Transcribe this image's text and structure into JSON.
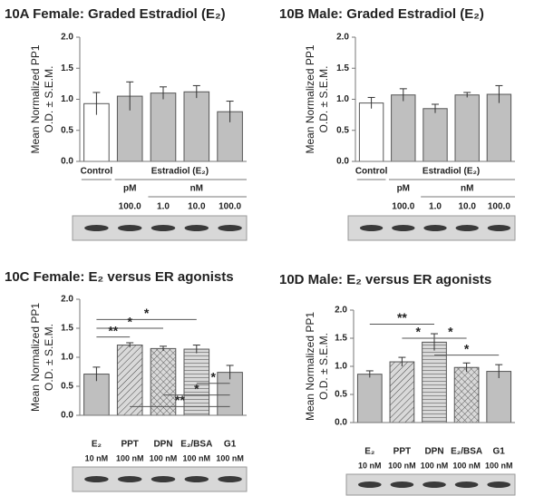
{
  "chart_data": [
    {
      "type": "bar",
      "title": "10A  Female:  Graded Estradiol (E₂)",
      "y_label": [
        "Mean Normalized PP1",
        "O.D. ± S.E.M."
      ],
      "categories": [
        "Control",
        "100.0",
        "1.0",
        "10.0",
        "100.0"
      ],
      "group": {
        "label": "Estradiol (E₂)",
        "units": [
          "pM",
          "nM"
        ]
      },
      "values": [
        0.93,
        1.05,
        1.1,
        1.12,
        0.8
      ],
      "errors": [
        0.18,
        0.23,
        0.1,
        0.1,
        0.17
      ],
      "colors": [
        "#ffffff",
        "#bfbfbf",
        "#bfbfbf",
        "#bfbfbf",
        "#bfbfbf"
      ],
      "ylim": [
        0,
        2
      ],
      "yticks": [
        {
          "value": 0,
          "label": "0.0"
        },
        {
          "value": 0.5,
          "label": "0.5"
        },
        {
          "value": 1,
          "label": "1.0"
        },
        {
          "value": 1.5,
          "label": "1.5"
        },
        {
          "value": 2,
          "label": "2.0"
        }
      ]
    },
    {
      "type": "bar",
      "title": "10B  Male:  Graded Estradiol (E₂)",
      "y_label": [
        "Mean Normalized PP1",
        "O.D. ± S.E.M."
      ],
      "categories": [
        "Control",
        "100.0",
        "1.0",
        "10.0",
        "100.0"
      ],
      "group": {
        "label": "Estradiol (E₂)",
        "units": [
          "pM",
          "nM"
        ]
      },
      "values": [
        0.94,
        1.07,
        0.85,
        1.07,
        1.08
      ],
      "errors": [
        0.09,
        0.1,
        0.07,
        0.04,
        0.14
      ],
      "colors": [
        "#ffffff",
        "#bfbfbf",
        "#bfbfbf",
        "#bfbfbf",
        "#bfbfbf"
      ],
      "ylim": [
        0,
        2
      ],
      "yticks": [
        {
          "value": 0,
          "label": "0.0"
        },
        {
          "value": 0.5,
          "label": "0.5"
        },
        {
          "value": 1,
          "label": "1.0"
        },
        {
          "value": 1.5,
          "label": "1.5"
        },
        {
          "value": 2,
          "label": "2.0"
        }
      ]
    },
    {
      "type": "bar",
      "title": "10C  Female:  E₂ versus ER agonists",
      "y_label": [
        "Mean Normalized PP1",
        "O.D. ± S.E.M."
      ],
      "categories": [
        "E₂",
        "PPT",
        "DPN",
        "E₂/BSA",
        "G1"
      ],
      "doses": [
        "10 nM",
        "100 nM",
        "100 nM",
        "100 nM",
        "100 nM"
      ],
      "values": [
        0.71,
        1.21,
        1.15,
        1.14,
        0.74
      ],
      "errors": [
        0.12,
        0.04,
        0.04,
        0.07,
        0.12
      ],
      "colors": [
        "#bfbfbf",
        "#bfbfbf",
        "#bfbfbf",
        "#bfbfbf",
        "#bfbfbf"
      ],
      "patterns": [
        "none",
        "diagonal",
        "crosshatch",
        "horizontal",
        "none"
      ],
      "annotations": [
        "*",
        "*",
        "**",
        "*",
        "*",
        "**"
      ],
      "ylim": [
        0,
        2
      ],
      "yticks": [
        {
          "value": 0,
          "label": "0.0"
        },
        {
          "value": 0.5,
          "label": "0.5"
        },
        {
          "value": 1,
          "label": "1.0"
        },
        {
          "value": 1.5,
          "label": "1.5"
        },
        {
          "value": 2,
          "label": "2.0"
        }
      ]
    },
    {
      "type": "bar",
      "title": "10D  Male:  E₂ versus ER agonists",
      "y_label": [
        "Mean Normalized PP1",
        "O.D. ± S.E.M."
      ],
      "categories": [
        "E₂",
        "PPT",
        "DPN",
        "E₂/BSA",
        "G1"
      ],
      "doses": [
        "10 nM",
        "100 nM",
        "100 nM",
        "100 nM",
        "100 nM"
      ],
      "values": [
        0.86,
        1.08,
        1.43,
        0.98,
        0.91
      ],
      "errors": [
        0.06,
        0.08,
        0.15,
        0.08,
        0.12
      ],
      "colors": [
        "#bfbfbf",
        "#bfbfbf",
        "#bfbfbf",
        "#bfbfbf",
        "#bfbfbf"
      ],
      "patterns": [
        "none",
        "diagonal",
        "horizontal",
        "crosshatch",
        "none"
      ],
      "annotations": [
        "**",
        "*",
        "*",
        "*"
      ],
      "ylim": [
        0,
        2
      ],
      "yticks": [
        {
          "value": 0,
          "label": "0.0"
        },
        {
          "value": 0.5,
          "label": "0.5"
        },
        {
          "value": 1,
          "label": "1.0"
        },
        {
          "value": 1.5,
          "label": "1.5"
        },
        {
          "value": 2,
          "label": "2.0"
        }
      ]
    }
  ]
}
